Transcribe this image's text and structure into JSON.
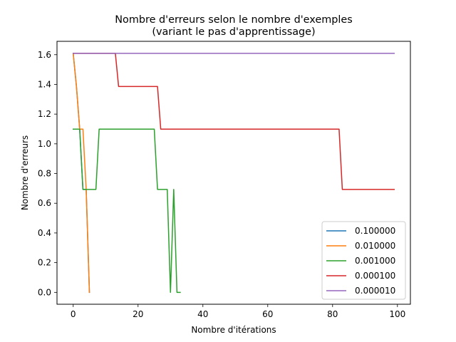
{
  "chart_data": {
    "type": "line",
    "title_line1": "Nombre d'erreurs selon le nombre d'exemples",
    "title_line2": "(variant le pas d'apprentissage)",
    "xlabel": "Nombre d'itérations",
    "ylabel": "Nombre d'erreurs",
    "xlim": [
      -5,
      104
    ],
    "ylim": [
      -0.08,
      1.69
    ],
    "xticks": [
      0,
      20,
      40,
      60,
      80,
      100
    ],
    "yticks": [
      0.0,
      0.2,
      0.4,
      0.6,
      0.8,
      1.0,
      1.2,
      1.4,
      1.6
    ],
    "ytick_labels": [
      "0.0",
      "0.2",
      "0.4",
      "0.6",
      "0.8",
      "1.0",
      "1.2",
      "1.4",
      "1.6"
    ],
    "xtick_labels": [
      "0",
      "20",
      "40",
      "60",
      "80",
      "100"
    ],
    "grid": false,
    "legend_position": "lower-right",
    "series": [
      {
        "name": "0.100000",
        "color": "#1f77b4",
        "x": [
          0,
          1,
          2,
          3,
          4,
          5
        ],
        "y": [
          1.609,
          1.386,
          1.099,
          0.693,
          0.693,
          0.0
        ]
      },
      {
        "name": "0.010000",
        "color": "#ff7f0e",
        "x": [
          0,
          1,
          2,
          3,
          4,
          5
        ],
        "y": [
          1.609,
          1.386,
          1.099,
          1.099,
          0.693,
          0.0
        ]
      },
      {
        "name": "0.001000",
        "color": "#2ca02c",
        "x": [
          0,
          1,
          2,
          3,
          4,
          5,
          6,
          7,
          8,
          9,
          10,
          11,
          12,
          13,
          14,
          15,
          16,
          17,
          18,
          19,
          20,
          21,
          22,
          23,
          24,
          25,
          26,
          27,
          28,
          29,
          30,
          31,
          32,
          33
        ],
        "y": [
          1.099,
          1.099,
          1.099,
          0.693,
          0.693,
          0.693,
          0.693,
          0.693,
          1.099,
          1.099,
          1.099,
          1.099,
          1.099,
          1.099,
          1.099,
          1.099,
          1.099,
          1.099,
          1.099,
          1.099,
          1.099,
          1.099,
          1.099,
          1.099,
          1.099,
          1.099,
          0.693,
          0.693,
          0.693,
          0.693,
          0.0,
          0.693,
          0.0,
          0.0
        ]
      },
      {
        "name": "0.000100",
        "color": "#d62728",
        "x": [
          0,
          13,
          14,
          26,
          27,
          82,
          83,
          99
        ],
        "y": [
          1.609,
          1.609,
          1.386,
          1.386,
          1.099,
          1.099,
          0.693,
          0.693
        ]
      },
      {
        "name": "0.000010",
        "color": "#9467bd",
        "x": [
          0,
          99
        ],
        "y": [
          1.609,
          1.609
        ]
      }
    ]
  }
}
